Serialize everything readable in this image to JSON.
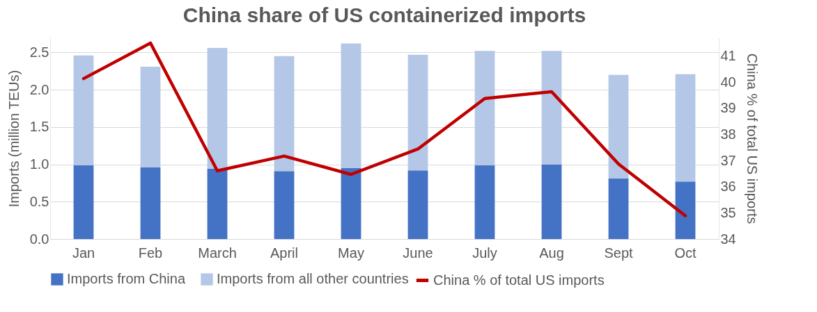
{
  "chart_data": {
    "type": "bar",
    "title": "China share of US containerized imports",
    "ylabel": "Imports (million TEUs)",
    "y2label": "China % of total US imports",
    "categories": [
      "Jan",
      "Feb",
      "March",
      "April",
      "May",
      "June",
      "July",
      "Aug",
      "Sept",
      "Oct"
    ],
    "stacked": true,
    "series": [
      {
        "name": "Imports from China",
        "color": "#4472c4",
        "values": [
          0.99,
          0.96,
          0.94,
          0.91,
          0.95,
          0.92,
          0.99,
          1.0,
          0.81,
          0.77
        ]
      },
      {
        "name": "Imports from all other countries",
        "color": "#b4c7e7",
        "values": [
          1.47,
          1.35,
          1.62,
          1.54,
          1.67,
          1.55,
          1.53,
          1.52,
          1.39,
          1.44
        ]
      },
      {
        "name": "China % of total US imports",
        "color": "#c00000",
        "type": "line",
        "axis": "y2",
        "values": [
          40.13,
          41.49,
          36.61,
          37.17,
          36.47,
          37.44,
          39.37,
          39.63,
          36.87,
          34.89
        ]
      }
    ],
    "ylim": [
      0,
      2.7
    ],
    "yticks": [
      {
        "value": 0,
        "label": "0.0"
      },
      {
        "value": 0.5,
        "label": "0.5"
      },
      {
        "value": 1,
        "label": "1.0"
      },
      {
        "value": 1.5,
        "label": "1.5"
      },
      {
        "value": 2,
        "label": "2.0"
      },
      {
        "value": 2.5,
        "label": "2.5"
      }
    ],
    "y2lim": [
      34,
      41.7
    ],
    "y2ticks": [
      34,
      35,
      36,
      37,
      38,
      39,
      40,
      41
    ],
    "grid": "y",
    "legend": "bottom"
  }
}
